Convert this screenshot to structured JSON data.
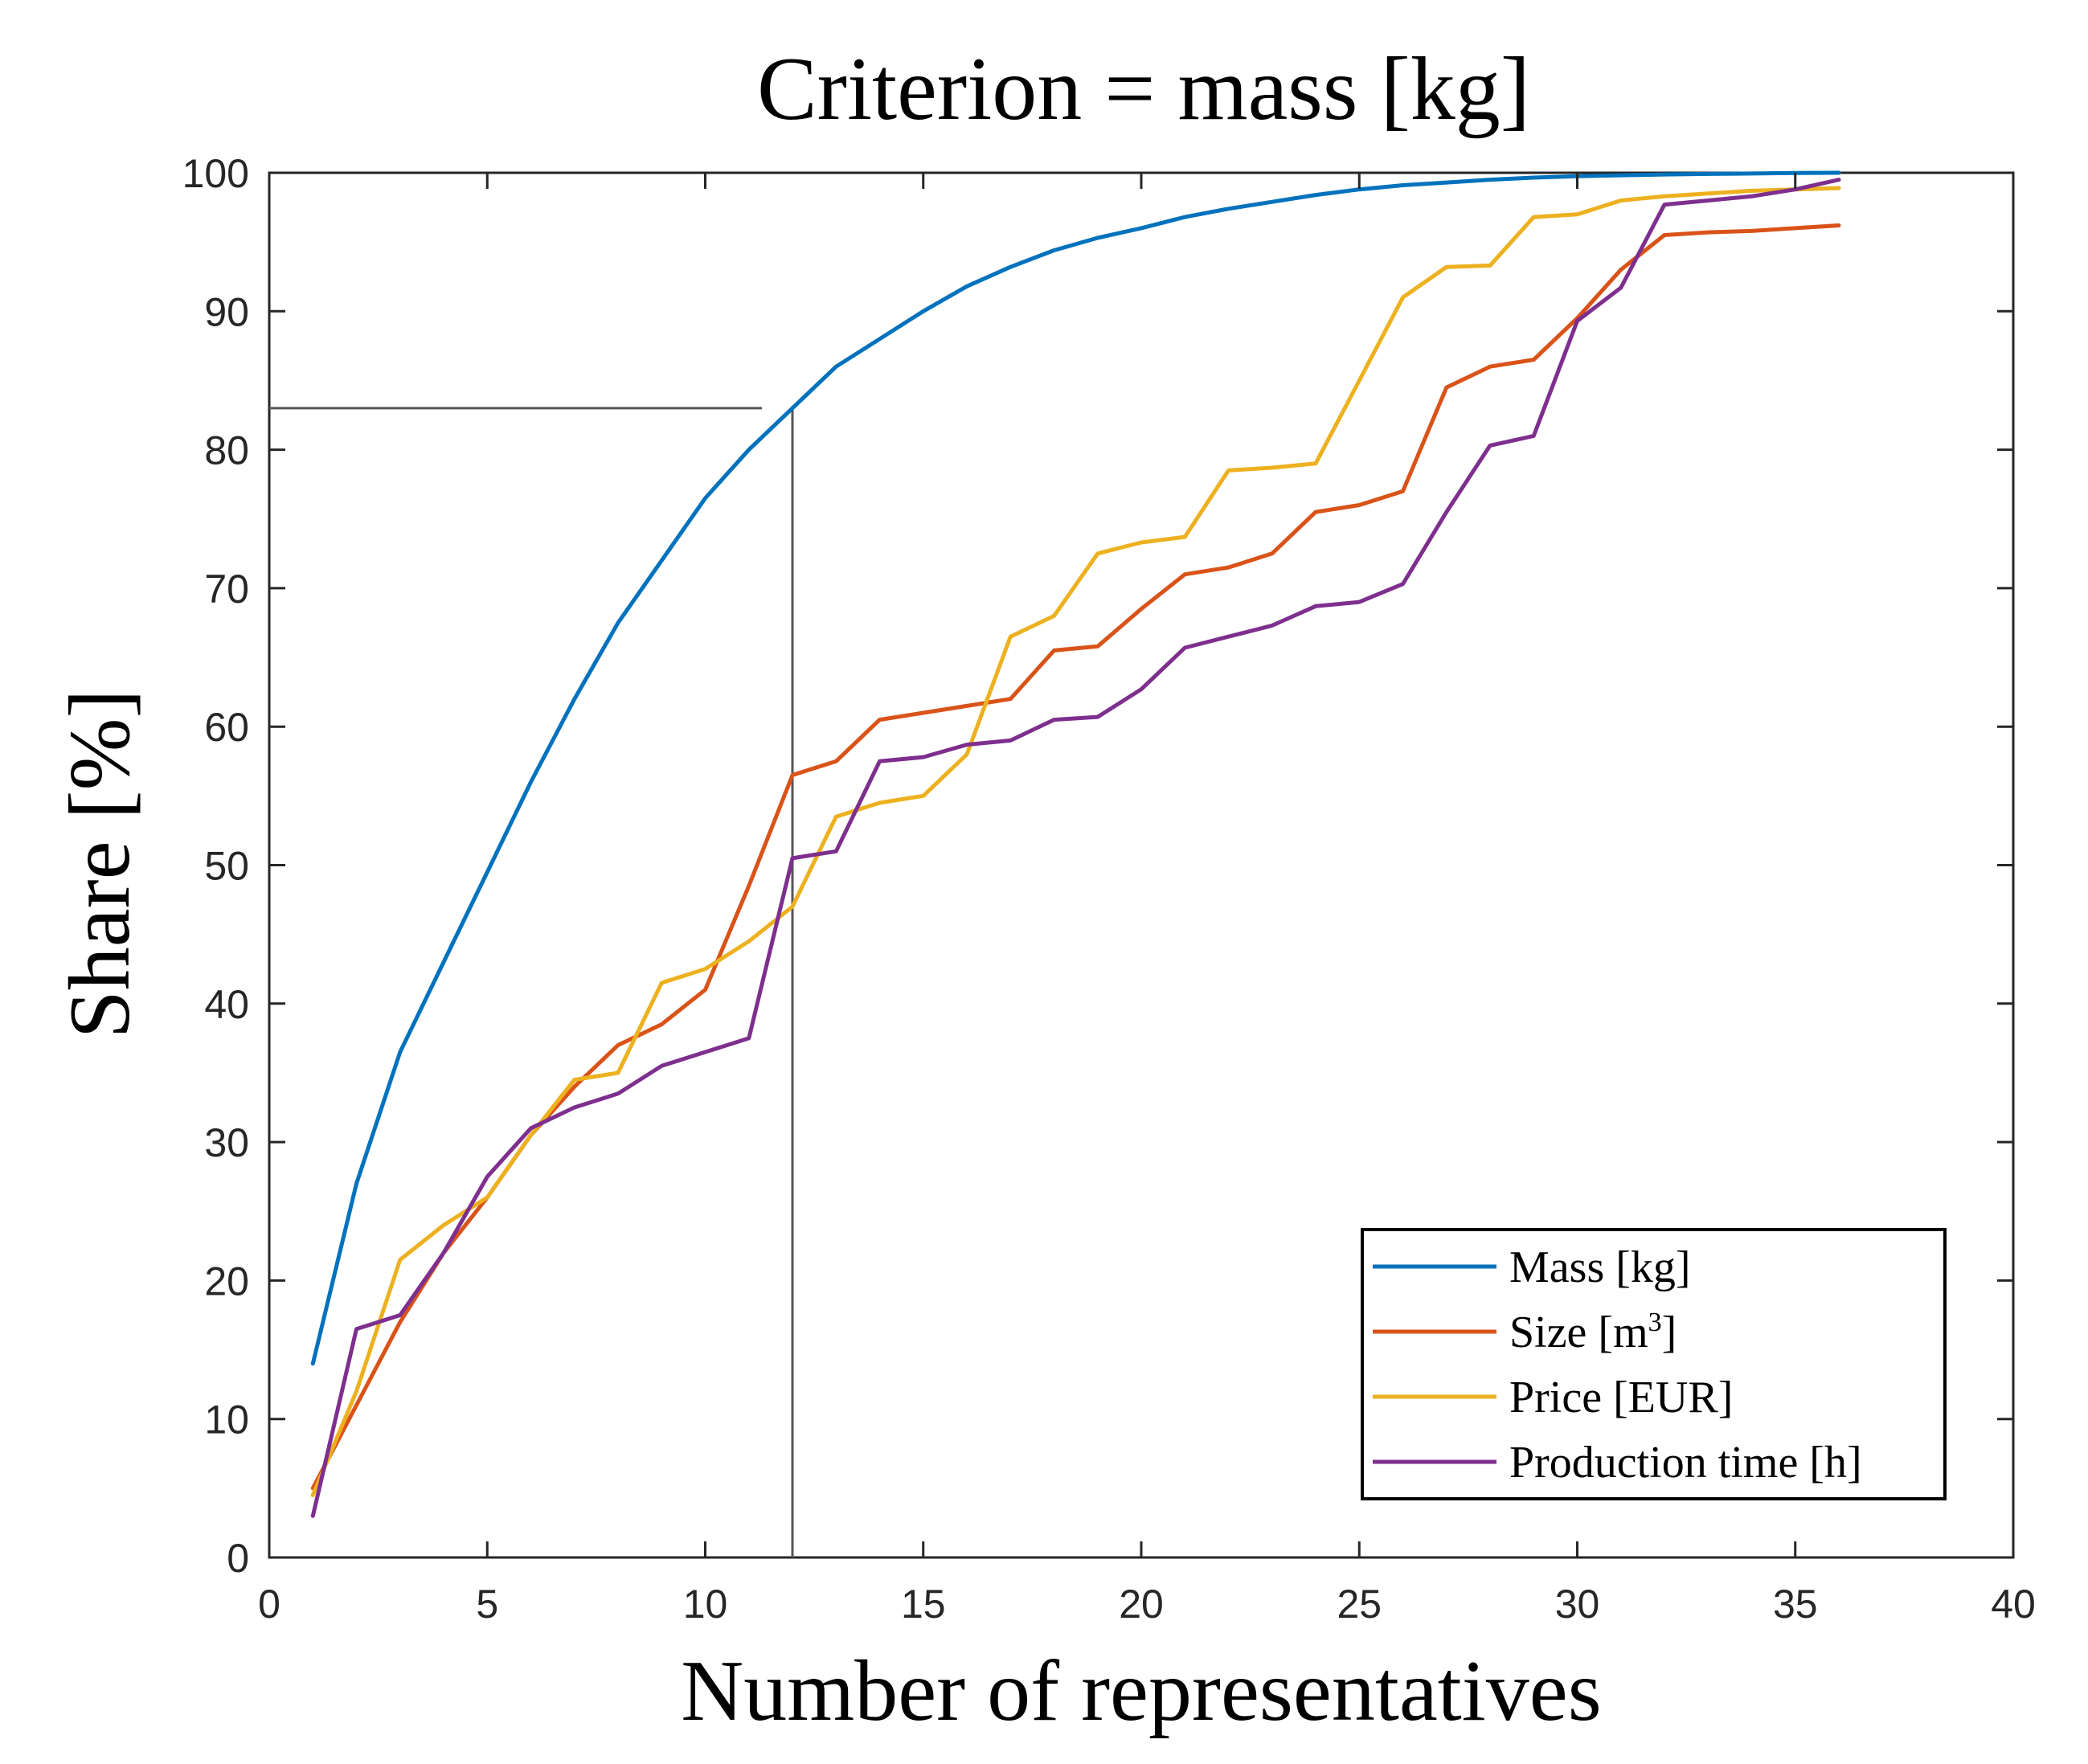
{
  "chart_data": {
    "type": "line",
    "title": "Criterion = mass [kg]",
    "xlabel": "Number of representatives",
    "ylabel": "Share [%]",
    "xlim": [
      0,
      40
    ],
    "ylim": [
      0,
      100
    ],
    "xticks": [
      0,
      5,
      10,
      15,
      20,
      25,
      30,
      35,
      40
    ],
    "yticks": [
      0,
      10,
      20,
      30,
      40,
      50,
      60,
      70,
      80,
      90,
      100
    ],
    "grid": false,
    "legend_position": "bottom-right",
    "x": [
      1,
      2,
      3,
      4,
      5,
      6,
      7,
      8,
      9,
      10,
      11,
      12,
      13,
      14,
      15,
      16,
      17,
      18,
      19,
      20,
      21,
      22,
      23,
      24,
      25,
      26,
      27,
      28,
      29,
      30,
      31,
      32,
      33,
      34,
      35,
      36
    ],
    "series": [
      {
        "name": "Mass [kg]",
        "label_main": "Mass [kg]",
        "color": "#0072BD",
        "values": [
          14,
          27,
          36.5,
          43,
          49.5,
          56,
          62,
          67.5,
          72,
          76.5,
          80,
          83,
          86,
          88,
          90,
          91.8,
          93.2,
          94.4,
          95.3,
          96,
          96.8,
          97.4,
          97.9,
          98.4,
          98.8,
          99.1,
          99.3,
          99.5,
          99.65,
          99.75,
          99.82,
          99.88,
          99.92,
          99.95,
          99.98,
          100
        ]
      },
      {
        "name": "Size [m3]",
        "label_main": "Size [m",
        "label_sup": "3",
        "label_end": "]",
        "color": "#D95319",
        "values": [
          5,
          11,
          17,
          22,
          26,
          30.5,
          34,
          37,
          38.5,
          41,
          48.5,
          56.5,
          57.5,
          60.5,
          61,
          61.5,
          62,
          65.5,
          65.8,
          68.5,
          71,
          71.5,
          72.5,
          75.5,
          76,
          77,
          84.5,
          86,
          86.5,
          89.5,
          93,
          95.5,
          95.7,
          95.8,
          96,
          96.2
        ]
      },
      {
        "name": "Price [EUR]",
        "label_main": "Price [EUR]",
        "color": "#EDB120",
        "values": [
          4.5,
          12,
          21.5,
          24,
          26,
          30.5,
          34.5,
          35,
          41.5,
          42.5,
          44.5,
          47,
          53.5,
          54.5,
          55,
          58,
          66.5,
          68,
          72.5,
          73.3,
          73.7,
          78.5,
          78.7,
          79,
          85,
          91,
          93.2,
          93.3,
          96.8,
          97,
          98,
          98.3,
          98.5,
          98.7,
          98.8,
          98.9
        ]
      },
      {
        "name": "Production time [h]",
        "label_main": "Production time [h]",
        "color": "#7E2F8E",
        "values": [
          3,
          16.5,
          17.5,
          22,
          27.5,
          31,
          32.5,
          33.5,
          35.5,
          36.5,
          37.5,
          50.5,
          51,
          57.5,
          57.8,
          58.7,
          59,
          60.5,
          60.7,
          62.7,
          65.7,
          66.5,
          67.3,
          68.7,
          69,
          70.3,
          75.5,
          80.3,
          81,
          89.3,
          91.7,
          97.7,
          98,
          98.3,
          98.8,
          99.5
        ]
      }
    ],
    "reference_lines": {
      "x": 12,
      "y": 83,
      "color": "#555555"
    }
  }
}
